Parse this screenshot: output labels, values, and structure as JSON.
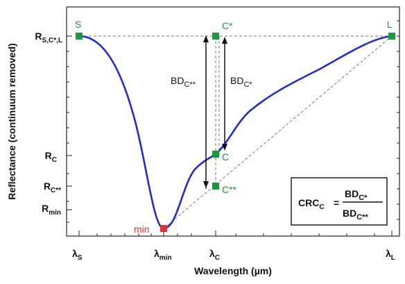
{
  "axes": {
    "x_title": "Wavelength (µm)",
    "y_title": "Reflectance (continuum removed)"
  },
  "y_ticks": {
    "rsl_main": "R",
    "rsl_sub": "S,C*,L",
    "rc_main": "R",
    "rc_sub": "C",
    "rcc_main": "R",
    "rcc_sub": "C**",
    "rmin_main": "R",
    "rmin_sub": "min"
  },
  "x_ticks": {
    "ls_main": "λ",
    "ls_sub": "S",
    "lmin_main": "λ",
    "lmin_sub": "min",
    "lc_main": "λ",
    "lc_sub": "C",
    "ll_main": "λ",
    "ll_sub": "L"
  },
  "points": {
    "s": "S",
    "cstar": "C*",
    "l": "L",
    "c": "C",
    "cstarstar": "C**",
    "min": "min"
  },
  "labels": {
    "bd_cc_main": "BD",
    "bd_cc_sub": "C**",
    "bd_c_main": "BD",
    "bd_c_sub": "C*"
  },
  "formula": {
    "lhs_main": "CRC",
    "lhs_sub": "C",
    "eq": "=",
    "num_main": "BD",
    "num_sub": "C*",
    "den_main": "BD",
    "den_sub": "C**"
  },
  "colors": {
    "curve": "#1f2bd8",
    "point_green": "#1a9a3a",
    "point_red": "#e0312a",
    "dashed": "#777777",
    "arrow": "#111111"
  }
}
